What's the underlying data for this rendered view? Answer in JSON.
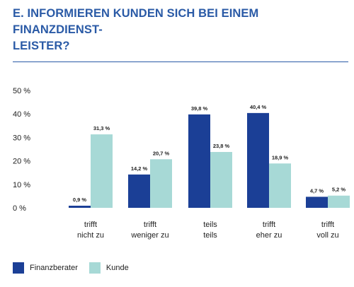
{
  "title": "E. INFORMIEREN KUNDEN SICH BEI EINEM FINANZDIENST-LEISTER?",
  "title_lines": [
    "E. INFORMIEREN KUNDEN SICH BEI EINEM FINANZDIENST-",
    "LEISTER?"
  ],
  "colors": {
    "accent": "#2a5aa6",
    "finanzberater": "#1b3f96",
    "kunde": "#a7d9d6"
  },
  "chart_data": {
    "type": "bar",
    "categories": [
      [
        "trifft",
        "nicht zu"
      ],
      [
        "trifft",
        "weniger zu"
      ],
      [
        "teils",
        "teils"
      ],
      [
        "trifft",
        "eher zu"
      ],
      [
        "trifft",
        "voll zu"
      ]
    ],
    "series": [
      {
        "name": "Finanzberater",
        "values": [
          0.9,
          14.2,
          39.8,
          40.4,
          4.7
        ],
        "labels": [
          "0,9 %",
          "14,2 %",
          "39,8 %",
          "40,4 %",
          "4,7 %"
        ]
      },
      {
        "name": "Kunde",
        "values": [
          31.3,
          20.7,
          23.8,
          18.9,
          5.2
        ],
        "labels": [
          "31,3 %",
          "20,7 %",
          "23,8 %",
          "18,9 %",
          "5,2 %"
        ]
      }
    ],
    "yticks": [
      "50 %",
      "40 %",
      "30 %",
      "20 %",
      "10 %",
      "0 %"
    ],
    "ylim": [
      0,
      50
    ],
    "grid": false,
    "legend": "bottom-left"
  }
}
